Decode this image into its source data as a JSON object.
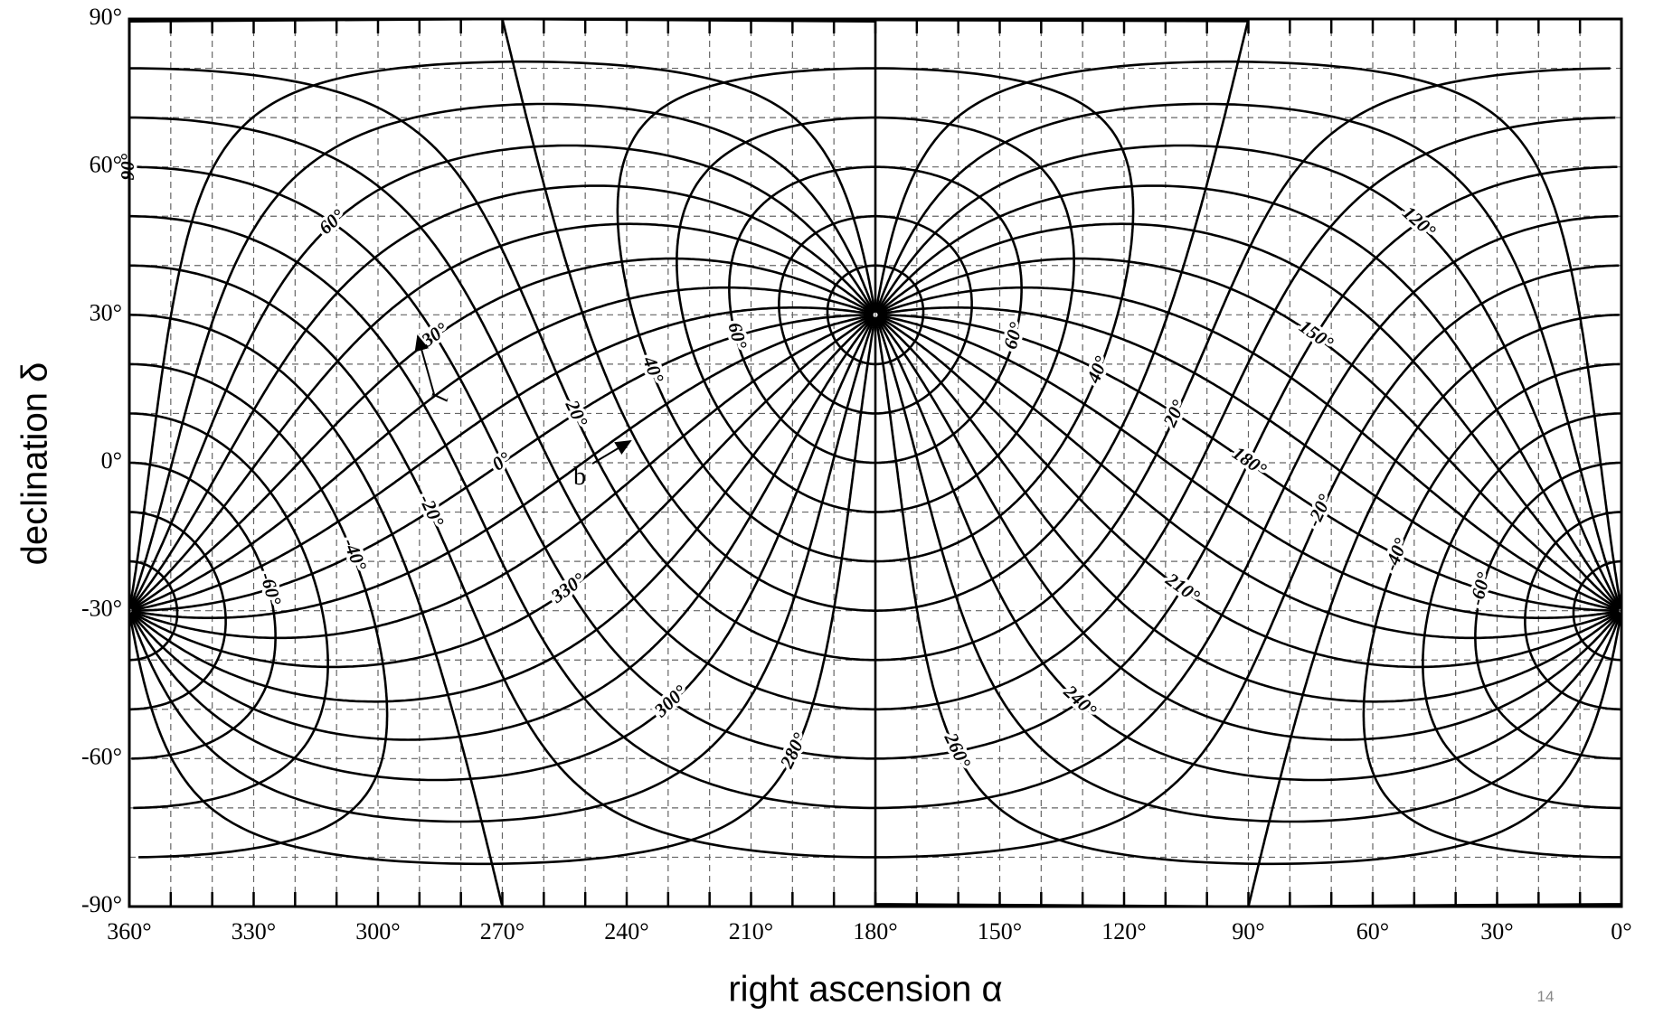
{
  "chart_data": {
    "type": "coordinate_grid",
    "xlabel": "right ascension α",
    "ylabel": "declination δ",
    "xlim": [
      360,
      0
    ],
    "ylim": [
      -90,
      90
    ],
    "xticks": [
      {
        "value": 360,
        "label": "360°"
      },
      {
        "value": 330,
        "label": "330°"
      },
      {
        "value": 300,
        "label": "300°"
      },
      {
        "value": 270,
        "label": "270°"
      },
      {
        "value": 240,
        "label": "240°"
      },
      {
        "value": 210,
        "label": "210°"
      },
      {
        "value": 180,
        "label": "180°"
      },
      {
        "value": 150,
        "label": "150°"
      },
      {
        "value": 120,
        "label": "120°"
      },
      {
        "value": 90,
        "label": "90°"
      },
      {
        "value": 60,
        "label": "60°"
      },
      {
        "value": 30,
        "label": "30°"
      },
      {
        "value": 0,
        "label": "0°"
      }
    ],
    "yticks": [
      {
        "value": 90,
        "label": "90°"
      },
      {
        "value": 60,
        "label": "60°"
      },
      {
        "value": 30,
        "label": "30°"
      },
      {
        "value": 0,
        "label": "0°"
      },
      {
        "value": -30,
        "label": "-30°"
      },
      {
        "value": -60,
        "label": "-60°"
      },
      {
        "value": -90,
        "label": "-90°"
      }
    ],
    "x_minor_ticks": [
      0,
      10,
      20,
      30,
      40,
      50,
      60,
      70,
      80,
      90,
      100,
      110,
      120,
      130,
      140,
      150,
      160,
      170,
      180,
      190,
      200,
      210,
      220,
      230,
      240,
      250,
      260,
      270,
      280,
      290,
      300,
      310,
      320,
      330,
      340,
      350,
      360
    ],
    "y_minor_ticks": [
      -90,
      -80,
      -70,
      -60,
      -50,
      -40,
      -30,
      -20,
      -10,
      0,
      10,
      20,
      30,
      40,
      50,
      60,
      70,
      80,
      90
    ],
    "grid": true,
    "galactic_pole": [
      180,
      30
    ],
    "latitude_lines": [
      -80,
      -70,
      -60,
      -50,
      -40,
      -30,
      -20,
      -10,
      0,
      10,
      20,
      30,
      40,
      50,
      60,
      70,
      80
    ],
    "longitude_lines": [
      0,
      10,
      20,
      30,
      40,
      50,
      60,
      70,
      80,
      90,
      100,
      110,
      120,
      130,
      140,
      150,
      160,
      170,
      180,
      190,
      200,
      210,
      220,
      230,
      240,
      250,
      260,
      270,
      280,
      290,
      300,
      310,
      320,
      330,
      340,
      350
    ],
    "longitude_labels": [
      {
        "value": 0,
        "label": "0°"
      },
      {
        "value": 30,
        "label": "30°"
      },
      {
        "value": 60,
        "label": "60°"
      },
      {
        "value": 90,
        "label": "90°"
      },
      {
        "value": 120,
        "label": "120°"
      },
      {
        "value": 150,
        "label": "150°"
      },
      {
        "value": 180,
        "label": "180°"
      },
      {
        "value": 210,
        "label": "210°"
      },
      {
        "value": 240,
        "label": "240°"
      },
      {
        "value": 260,
        "label": "260°"
      },
      {
        "value": 280,
        "label": "280°"
      },
      {
        "value": 300,
        "label": "300°"
      },
      {
        "value": 330,
        "label": "330°"
      }
    ],
    "latitude_label_groups": [
      {
        "longitude": 0,
        "labels": [
          {
            "value": -60,
            "label": "-60°"
          },
          {
            "value": -40,
            "label": "-40°"
          },
          {
            "value": -20,
            "label": "-20°"
          },
          {
            "value": 20,
            "label": "20°"
          },
          {
            "value": 40,
            "label": "40°"
          },
          {
            "value": 60,
            "label": "60°"
          }
        ]
      },
      {
        "longitude": 180,
        "labels": [
          {
            "value": 60,
            "label": "60°"
          },
          {
            "value": 40,
            "label": "40°"
          },
          {
            "value": 20,
            "label": "20°"
          },
          {
            "value": -20,
            "label": "-20°"
          },
          {
            "value": -40,
            "label": "-40°"
          },
          {
            "value": -60,
            "label": "-60°"
          }
        ]
      }
    ],
    "arrow_labels": {
      "l": "l",
      "b": "b"
    },
    "page_number": "14"
  }
}
